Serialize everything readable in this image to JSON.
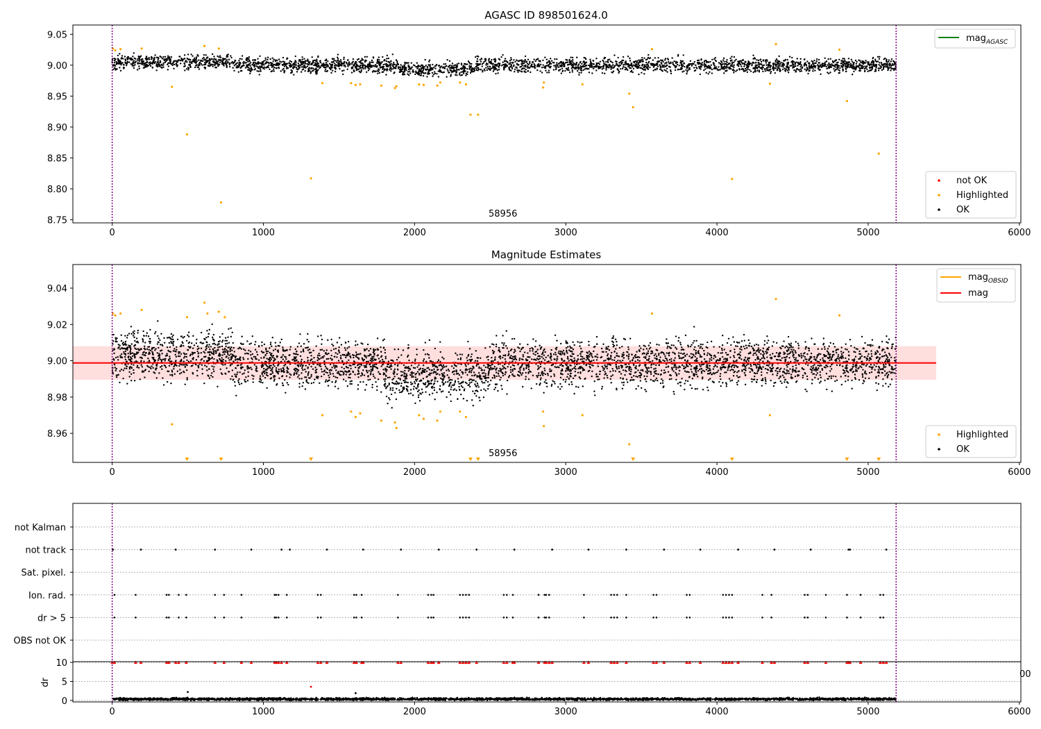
{
  "chart_data": [
    {
      "type": "scatter",
      "title": "AGASC ID 898501624.0",
      "xlim": [
        -260,
        6010
      ],
      "ylim": [
        8.745,
        9.065
      ],
      "xticks": [
        0,
        1000,
        2000,
        3000,
        4000,
        5000,
        6000
      ],
      "yticks": [
        8.75,
        8.8,
        8.85,
        8.9,
        8.95,
        9.0,
        9.05
      ],
      "annotation": "58956",
      "vlines": [
        0,
        5185
      ],
      "reference_line": {
        "label_main": "mag",
        "label_sub": "AGASC",
        "color": "#008000"
      },
      "legend": [
        {
          "label": "not OK",
          "color": "#ff0000"
        },
        {
          "label": "Highlighted",
          "color": "#ffa500"
        },
        {
          "label": "OK",
          "color": "#000000"
        }
      ],
      "ok_band": {
        "center": 9.0,
        "spread": 0.009,
        "x_range": [
          0,
          5185
        ]
      },
      "highlighted": [
        [
          5,
          9.027
        ],
        [
          20,
          9.024
        ],
        [
          55,
          9.026
        ],
        [
          195,
          9.027
        ],
        [
          395,
          8.965
        ],
        [
          495,
          8.888
        ],
        [
          610,
          9.031
        ],
        [
          705,
          9.027
        ],
        [
          720,
          8.778
        ],
        [
          1315,
          8.817
        ],
        [
          1390,
          8.971
        ],
        [
          1580,
          8.971
        ],
        [
          1610,
          8.968
        ],
        [
          1640,
          8.969
        ],
        [
          1780,
          8.967
        ],
        [
          1870,
          8.963
        ],
        [
          1880,
          8.966
        ],
        [
          2030,
          8.969
        ],
        [
          2060,
          8.968
        ],
        [
          2150,
          8.967
        ],
        [
          2170,
          8.972
        ],
        [
          2300,
          8.972
        ],
        [
          2340,
          8.969
        ],
        [
          2370,
          8.92
        ],
        [
          2420,
          8.92
        ],
        [
          2850,
          8.964
        ],
        [
          2855,
          8.972
        ],
        [
          3110,
          8.969
        ],
        [
          3420,
          8.954
        ],
        [
          3445,
          8.932
        ],
        [
          3570,
          9.026
        ],
        [
          4100,
          8.816
        ],
        [
          4350,
          8.97
        ],
        [
          4390,
          9.034
        ],
        [
          4810,
          9.025
        ],
        [
          4860,
          8.942
        ],
        [
          5070,
          8.857
        ]
      ]
    },
    {
      "type": "scatter",
      "title": "Magnitude Estimates",
      "xlim": [
        -260,
        6010
      ],
      "ylim": [
        8.944,
        9.053
      ],
      "xticks": [
        0,
        1000,
        2000,
        3000,
        4000,
        5000,
        6000
      ],
      "yticks": [
        8.96,
        8.98,
        9.0,
        9.02,
        9.04
      ],
      "annotation": "58956",
      "vlines": [
        0,
        5185
      ],
      "mean_line": {
        "value": 8.9988,
        "band": [
          8.9895,
          9.008
        ],
        "x_range": [
          -260,
          5450
        ]
      },
      "legend_lines": [
        {
          "label_main": "mag",
          "label_sub": "OBSID",
          "color": "#ffa500"
        },
        {
          "label_main": "mag",
          "label_sub": "",
          "color": "#ff0000"
        }
      ],
      "legend": [
        {
          "label": "Highlighted",
          "color": "#ffa500"
        },
        {
          "label": "OK",
          "color": "#000000"
        }
      ],
      "highlighted": [
        [
          5,
          9.026
        ],
        [
          20,
          9.025
        ],
        [
          55,
          9.026
        ],
        [
          195,
          9.028
        ],
        [
          395,
          8.965
        ],
        [
          495,
          9.024
        ],
        [
          610,
          9.032
        ],
        [
          630,
          9.026
        ],
        [
          705,
          9.027
        ],
        [
          745,
          9.024
        ],
        [
          1390,
          8.97
        ],
        [
          1580,
          8.972
        ],
        [
          1610,
          8.969
        ],
        [
          1640,
          8.971
        ],
        [
          1780,
          8.967
        ],
        [
          1870,
          8.966
        ],
        [
          1880,
          8.963
        ],
        [
          2030,
          8.97
        ],
        [
          2060,
          8.968
        ],
        [
          2150,
          8.967
        ],
        [
          2170,
          8.972
        ],
        [
          2300,
          8.972
        ],
        [
          2340,
          8.969
        ],
        [
          2850,
          8.972
        ],
        [
          2855,
          8.964
        ],
        [
          3110,
          8.97
        ],
        [
          3420,
          8.954
        ],
        [
          3570,
          9.026
        ],
        [
          4350,
          8.97
        ],
        [
          4390,
          9.034
        ],
        [
          4810,
          9.025
        ]
      ],
      "off_scale_markers": [
        495,
        720,
        1315,
        2370,
        2420,
        3445,
        4100,
        4860,
        5070
      ]
    },
    {
      "type": "scatter",
      "title": "",
      "xlim": [
        -260,
        6010
      ],
      "xticks": [
        0,
        1000,
        2000,
        3000,
        4000,
        5000,
        6000
      ],
      "vlines": [
        0,
        5185
      ],
      "categories": [
        "not Kalman",
        "not track",
        "Sat. pixel.",
        "Ion. rad.",
        "dr > 5",
        "OBS not OK"
      ],
      "not_track_x": [
        5,
        190,
        420,
        680,
        920,
        1120,
        1175,
        1420,
        1660,
        1910,
        2160,
        2410,
        2660,
        2910,
        3150,
        3400,
        3650,
        3890,
        4140,
        4380,
        4620,
        4870,
        4880,
        5120
      ],
      "ion_rad_x": [
        15,
        155,
        360,
        375,
        440,
        490,
        680,
        740,
        855,
        1075,
        1085,
        1100,
        1155,
        1360,
        1380,
        1600,
        1615,
        1650,
        1890,
        2090,
        2110,
        2125,
        2300,
        2320,
        2340,
        2360,
        2590,
        2610,
        2650,
        2820,
        2860,
        2870,
        2890,
        3120,
        3300,
        3320,
        3340,
        3400,
        3580,
        3600,
        3800,
        3820,
        4040,
        4060,
        4080,
        4100,
        4300,
        4360,
        4580,
        4600,
        4720,
        4860,
        4950,
        5080,
        5100
      ],
      "dr_gt5_x": [
        15,
        155,
        360,
        375,
        440,
        490,
        680,
        740,
        855,
        1075,
        1085,
        1100,
        1155,
        1360,
        1380,
        1600,
        1615,
        1650,
        1890,
        2090,
        2110,
        2125,
        2300,
        2320,
        2340,
        2360,
        2590,
        2610,
        2650,
        2820,
        2860,
        2870,
        2890,
        3120,
        3300,
        3320,
        3340,
        3400,
        3580,
        3600,
        3800,
        3820,
        4040,
        4060,
        4080,
        4100,
        4300,
        4360,
        4580,
        4600,
        4720,
        4860,
        4950,
        5080,
        5100
      ]
    },
    {
      "type": "scatter",
      "title": "",
      "ylabel": "dr",
      "xlim": [
        -260,
        6010
      ],
      "ylim": [
        -0.4,
        10.2
      ],
      "xticks": [
        0,
        1000,
        2000,
        3000,
        4000,
        5000,
        6000
      ],
      "yticks": [
        0,
        5,
        10
      ],
      "overlap_text": "00",
      "vlines": [
        0,
        5185
      ],
      "capped_value": 10,
      "capped_x": [
        0,
        15,
        155,
        190,
        360,
        375,
        420,
        440,
        490,
        680,
        740,
        855,
        920,
        1075,
        1085,
        1100,
        1120,
        1155,
        1360,
        1380,
        1420,
        1600,
        1615,
        1650,
        1660,
        1890,
        1910,
        2090,
        2110,
        2125,
        2160,
        2300,
        2320,
        2340,
        2360,
        2410,
        2590,
        2610,
        2650,
        2660,
        2820,
        2860,
        2870,
        2890,
        2910,
        3120,
        3150,
        3300,
        3320,
        3340,
        3400,
        3580,
        3600,
        3650,
        3800,
        3820,
        3890,
        4040,
        4060,
        4080,
        4100,
        4140,
        4300,
        4360,
        4380,
        4580,
        4600,
        4720,
        4860,
        4870,
        4880,
        4950,
        5080,
        5100,
        5120
      ],
      "outliers": [
        [
          1315,
          3.6
        ],
        [
          500,
          2.2
        ],
        [
          1610,
          1.9
        ]
      ],
      "baseline": {
        "center": 0.35,
        "spread": 0.3
      }
    }
  ]
}
